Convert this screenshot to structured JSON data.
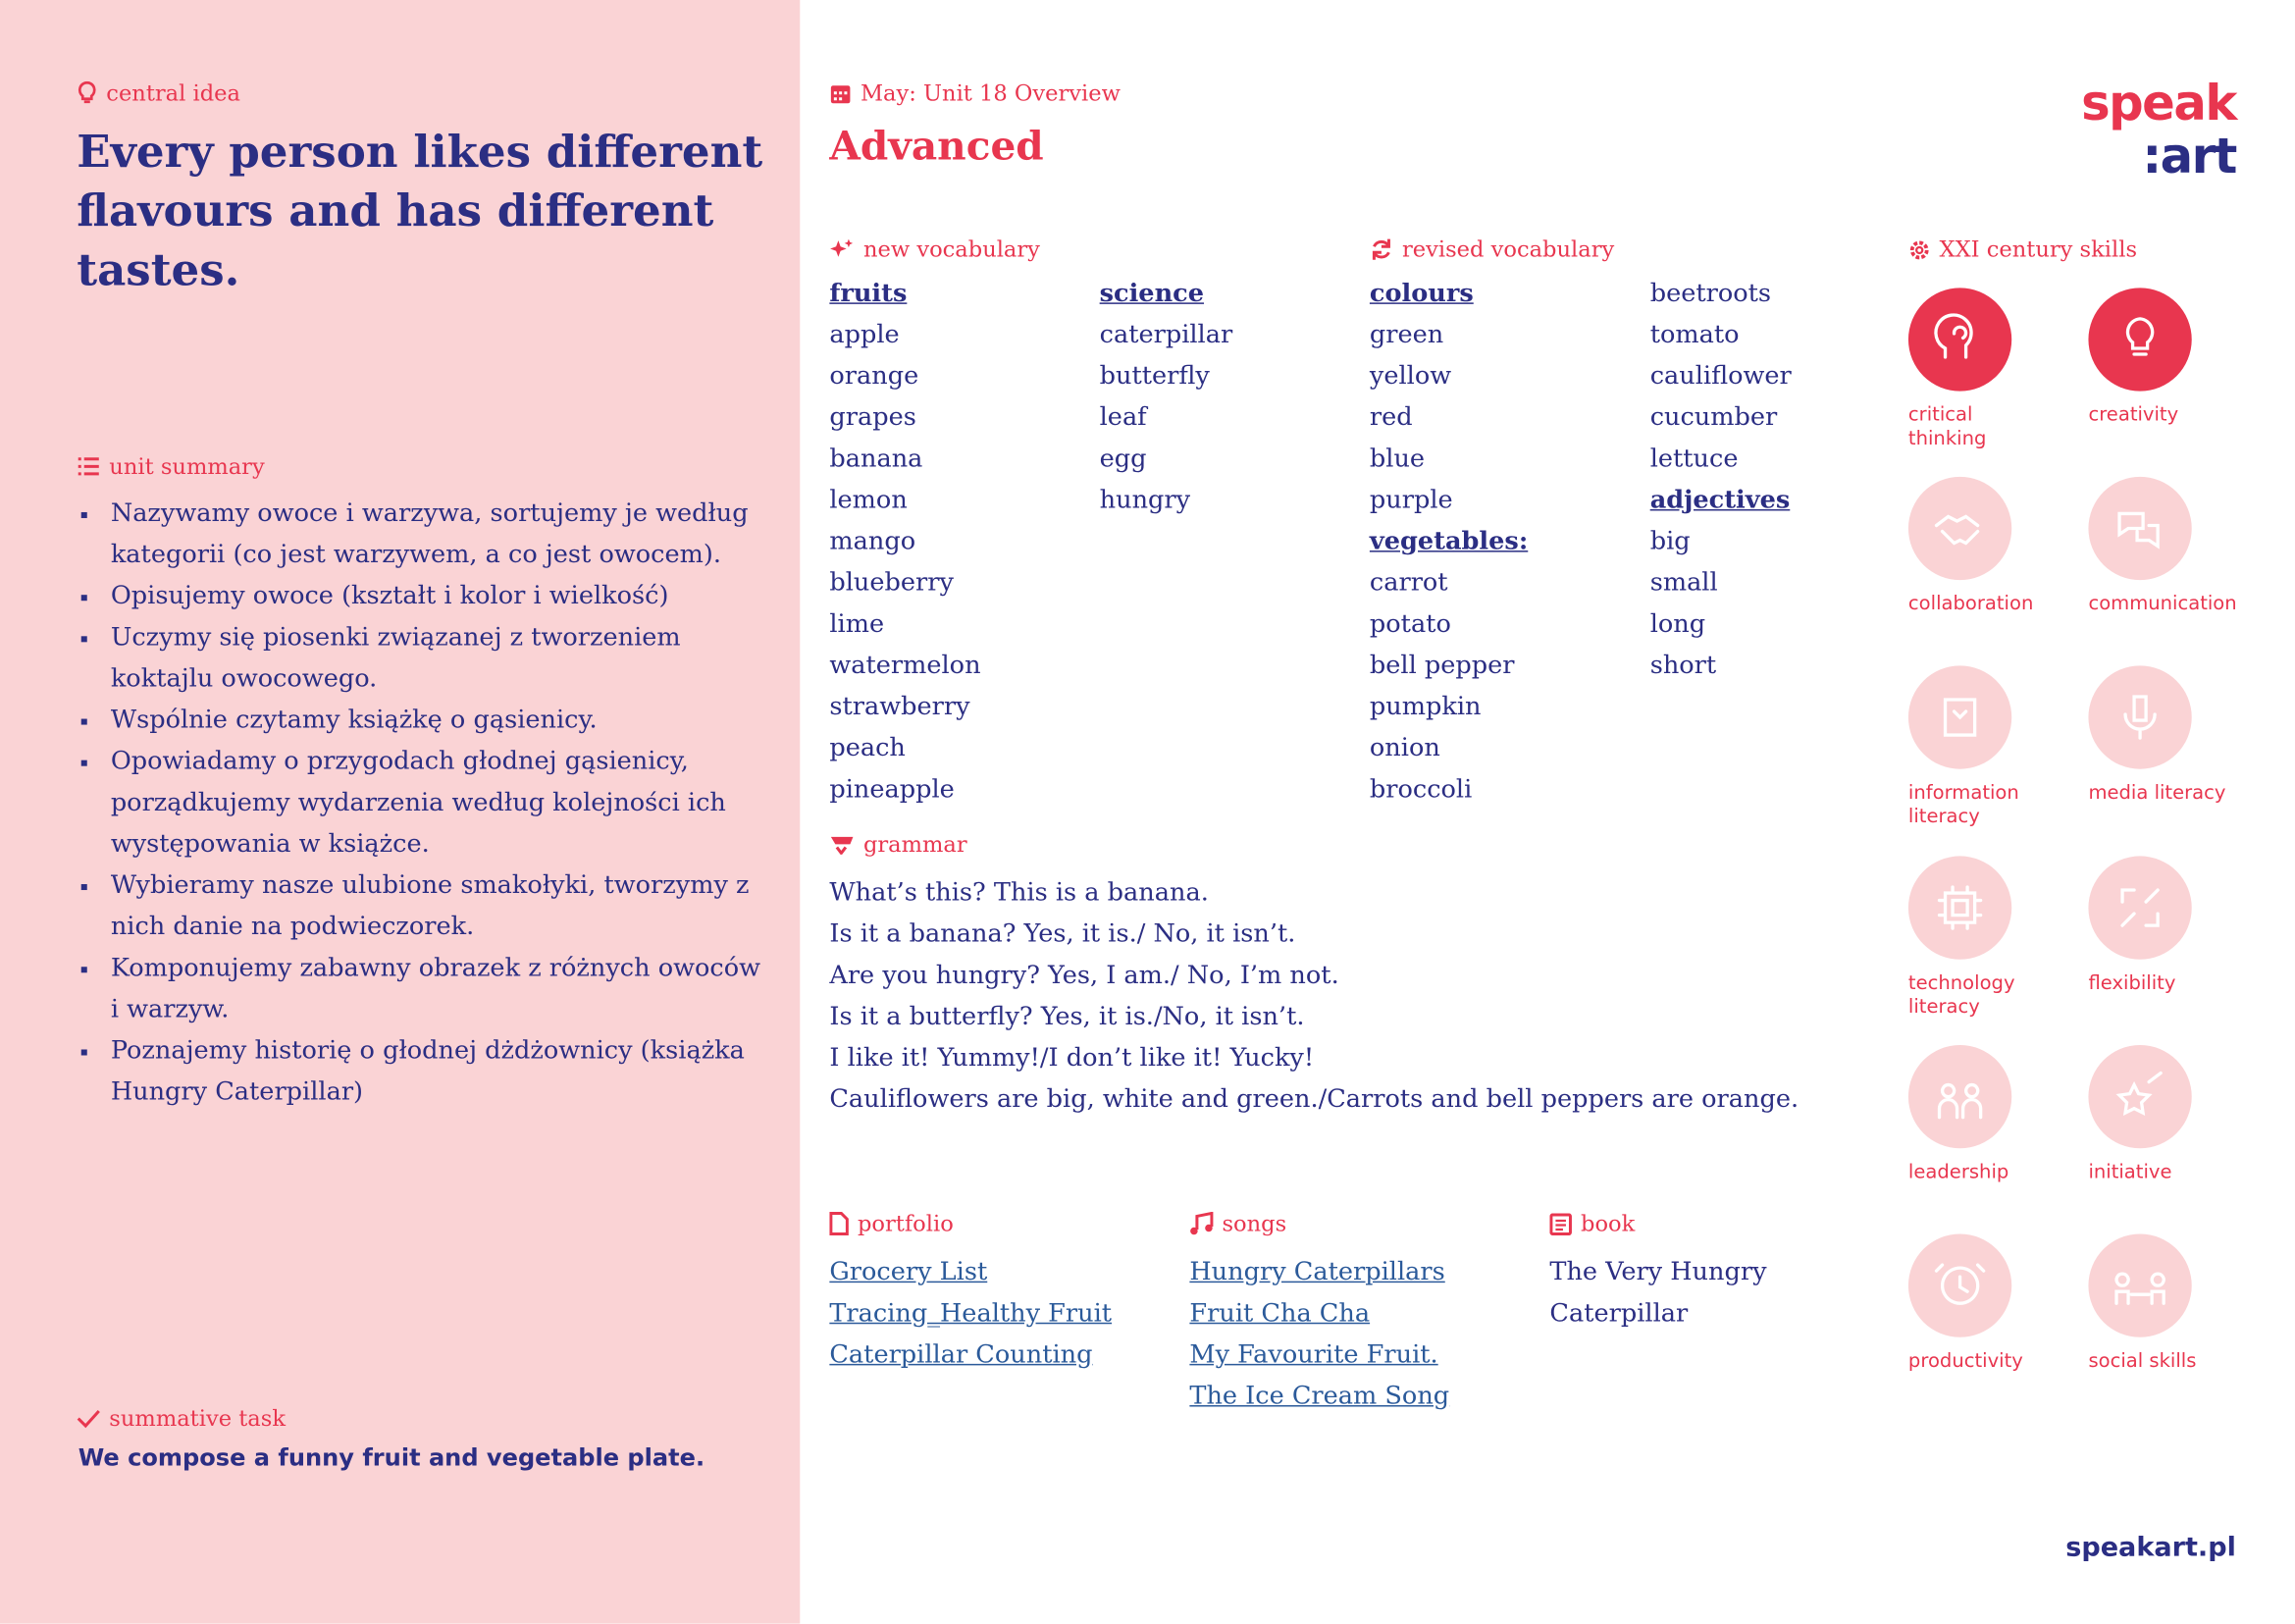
{
  "left": {
    "central_idea": {
      "label": "central idea",
      "text": "Every person likes different flavours and has different tastes."
    },
    "unit_summary": {
      "label": "unit summary",
      "items": [
        "Nazywamy owoce i warzywa, sortujemy je według kategorii (co jest warzywem, a co jest owocem).",
        "Opisujemy owoce (kształt i kolor i wielkość)",
        "Uczymy się piosenki związanej z tworzeniem koktajlu owocowego.",
        "Wspólnie czytamy książkę o gąsienicy.",
        "Opowiadamy o przygodach głodnej gąsienicy, porządkujemy wydarzenia według kolejności ich występowania w książce.",
        "Wybieramy nasze ulubione smakołyki, tworzymy z nich danie na podwieczorek.",
        "Komponujemy zabawny obrazek z różnych owoców i warzyw.",
        "Poznajemy historię o głodnej dżdżownicy (książka Hungry Caterpillar)"
      ]
    },
    "summative_task": {
      "label": "summative task",
      "text": "We compose a funny fruit and vegetable plate."
    }
  },
  "header": {
    "subtitle": "May: Unit 18 Overview",
    "title": "Advanced",
    "logo_top": "speak",
    "logo_bottom": ":art"
  },
  "new_vocabulary": {
    "label": "new vocabulary",
    "groups": [
      {
        "heading": "fruits",
        "words": [
          "apple",
          "orange",
          "grapes",
          "banana",
          "lemon",
          "mango",
          "blueberry",
          "lime",
          "watermelon",
          "strawberry",
          "peach",
          "pineapple"
        ]
      },
      {
        "heading": "science",
        "words": [
          "caterpillar",
          "butterfly",
          "leaf",
          "egg",
          "hungry"
        ]
      }
    ]
  },
  "revised_vocabulary": {
    "label": "revised vocabulary",
    "groups": [
      {
        "heading": "colours",
        "words": [
          "green",
          "yellow",
          "red",
          "blue",
          "purple"
        ]
      },
      {
        "heading": "vegetables:",
        "words": [
          "carrot",
          "potato",
          "bell pepper",
          "pumpkin",
          "onion",
          "broccoli",
          "beetroots",
          "tomato",
          "cauliflower",
          "cucumber",
          "lettuce"
        ]
      },
      {
        "heading": "adjectives",
        "words": [
          "big",
          "small",
          "long",
          "short"
        ]
      }
    ]
  },
  "grammar": {
    "label": "grammar",
    "lines": [
      "What’s this? This is a banana.",
      "Is it a banana? Yes, it is./ No, it isn’t.",
      "Are you hungry? Yes, I am./ No, I’m not.",
      "Is it a butterfly? Yes, it is./No, it isn’t.",
      "I like it! Yummy!/I don’t like it! Yucky!",
      "Cauliflowers are big, white and green./Carrots and bell peppers are orange."
    ]
  },
  "portfolio": {
    "label": "portfolio",
    "items": [
      "Grocery List",
      "Tracing_Healthy Fruit",
      "Caterpillar Counting"
    ]
  },
  "songs": {
    "label": "songs",
    "items": [
      "Hungry Caterpillars",
      "Fruit Cha Cha",
      "My Favourite Fruit.",
      "The Ice Cream Song"
    ]
  },
  "book": {
    "label": "book",
    "items": [
      "The Very Hungry Caterpillar"
    ]
  },
  "skills": {
    "label": "XXI century skills",
    "items": [
      {
        "label": "critical thinking",
        "highlighted": true
      },
      {
        "label": "creativity",
        "highlighted": true
      },
      {
        "label": "collaboration",
        "highlighted": false
      },
      {
        "label": "communication",
        "highlighted": false
      },
      {
        "label": "information literacy",
        "highlighted": false
      },
      {
        "label": "media literacy",
        "highlighted": false
      },
      {
        "label": "technology literacy",
        "highlighted": false
      },
      {
        "label": "flexibility",
        "highlighted": false
      },
      {
        "label": "leadership",
        "highlighted": false
      },
      {
        "label": "initiative",
        "highlighted": false
      },
      {
        "label": "productivity",
        "highlighted": false
      },
      {
        "label": "social skills",
        "highlighted": false
      }
    ]
  },
  "footer": {
    "url": "speakart.pl"
  }
}
